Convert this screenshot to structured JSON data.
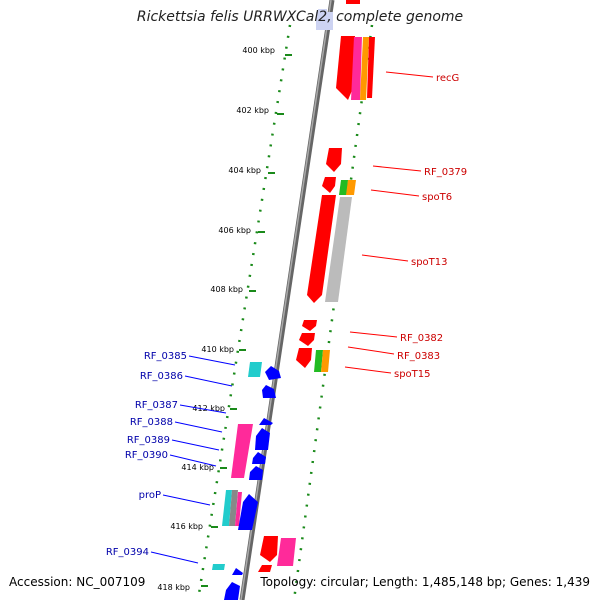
{
  "title": {
    "before": "Rickettsia felis URRWXCal",
    "highlight": "2",
    "after": ", complete genome"
  },
  "footer": {
    "accession": "Accession: NC_007109",
    "topology": "Topology: circular; Length: 1,485,148 bp; Genes: 1,439"
  },
  "ticks": [
    "400 kbp",
    "402 kbp",
    "404 kbp",
    "406 kbp",
    "408 kbp",
    "410 kbp",
    "412 kbp",
    "414 kbp",
    "416 kbp",
    "418 kbp"
  ],
  "genes_forward": [
    "recG",
    "RF_0379",
    "spoT6",
    "spoT13",
    "RF_0382",
    "RF_0383",
    "spoT15"
  ],
  "genes_reverse": [
    "RF_0385",
    "RF_0386",
    "RF_0387",
    "RF_0388",
    "RF_0389",
    "RF_0390",
    "proP",
    "RF_0394"
  ],
  "colors": {
    "forward": "#ff0000",
    "reverse": "#0000ff",
    "backbone": "#777777",
    "dotted_track": "#1a8a1a",
    "magenta": "#ff2a9a",
    "orange": "#ff9900",
    "green": "#22bb22",
    "grey": "#bbbbbb",
    "cyan": "#22cccc"
  }
}
